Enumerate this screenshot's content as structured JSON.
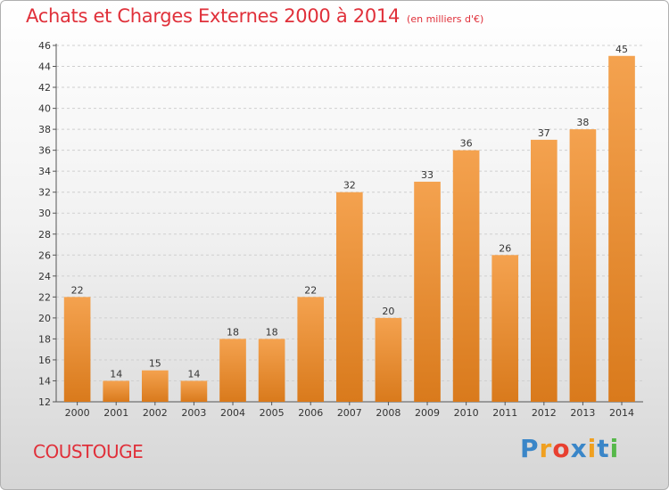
{
  "header": {
    "title": "Achats et Charges Externes 2000 à 2014",
    "subtitle": "(en milliers d'€)"
  },
  "footer": {
    "place": "COUSTOUGE",
    "logo": {
      "letters": [
        "P",
        "r",
        "o",
        "x",
        "i",
        "t",
        "i"
      ],
      "colors": [
        "#3a86c8",
        "#f0a020",
        "#e84030",
        "#3a86c8",
        "#f0a020",
        "#3a86c8",
        "#56b84a"
      ]
    }
  },
  "colors": {
    "accent": "#e0303a",
    "bar_top": "#f4a24f",
    "bar_bottom": "#d97a1c"
  },
  "chart_data": {
    "type": "bar",
    "title": "Achats et Charges Externes 2000 à 2014",
    "subtitle": "(en milliers d'€)",
    "xlabel": "",
    "ylabel": "",
    "categories": [
      "2000",
      "2001",
      "2002",
      "2003",
      "2004",
      "2005",
      "2006",
      "2007",
      "2008",
      "2009",
      "2010",
      "2011",
      "2012",
      "2013",
      "2014"
    ],
    "values": [
      22,
      14,
      15,
      14,
      18,
      18,
      22,
      32,
      20,
      33,
      36,
      26,
      37,
      38,
      45
    ],
    "data_labels": [
      "22",
      "14",
      "15",
      "14",
      "18",
      "18",
      "22",
      "32",
      "20",
      "33",
      "36",
      "26",
      "37",
      "38",
      "45"
    ],
    "ylim": [
      12,
      46
    ],
    "yticks": [
      "12",
      "14",
      "16",
      "18",
      "20",
      "22",
      "24",
      "26",
      "28",
      "30",
      "32",
      "34",
      "36",
      "38",
      "40",
      "42",
      "44",
      "46"
    ],
    "grid": true,
    "legend": "none"
  }
}
